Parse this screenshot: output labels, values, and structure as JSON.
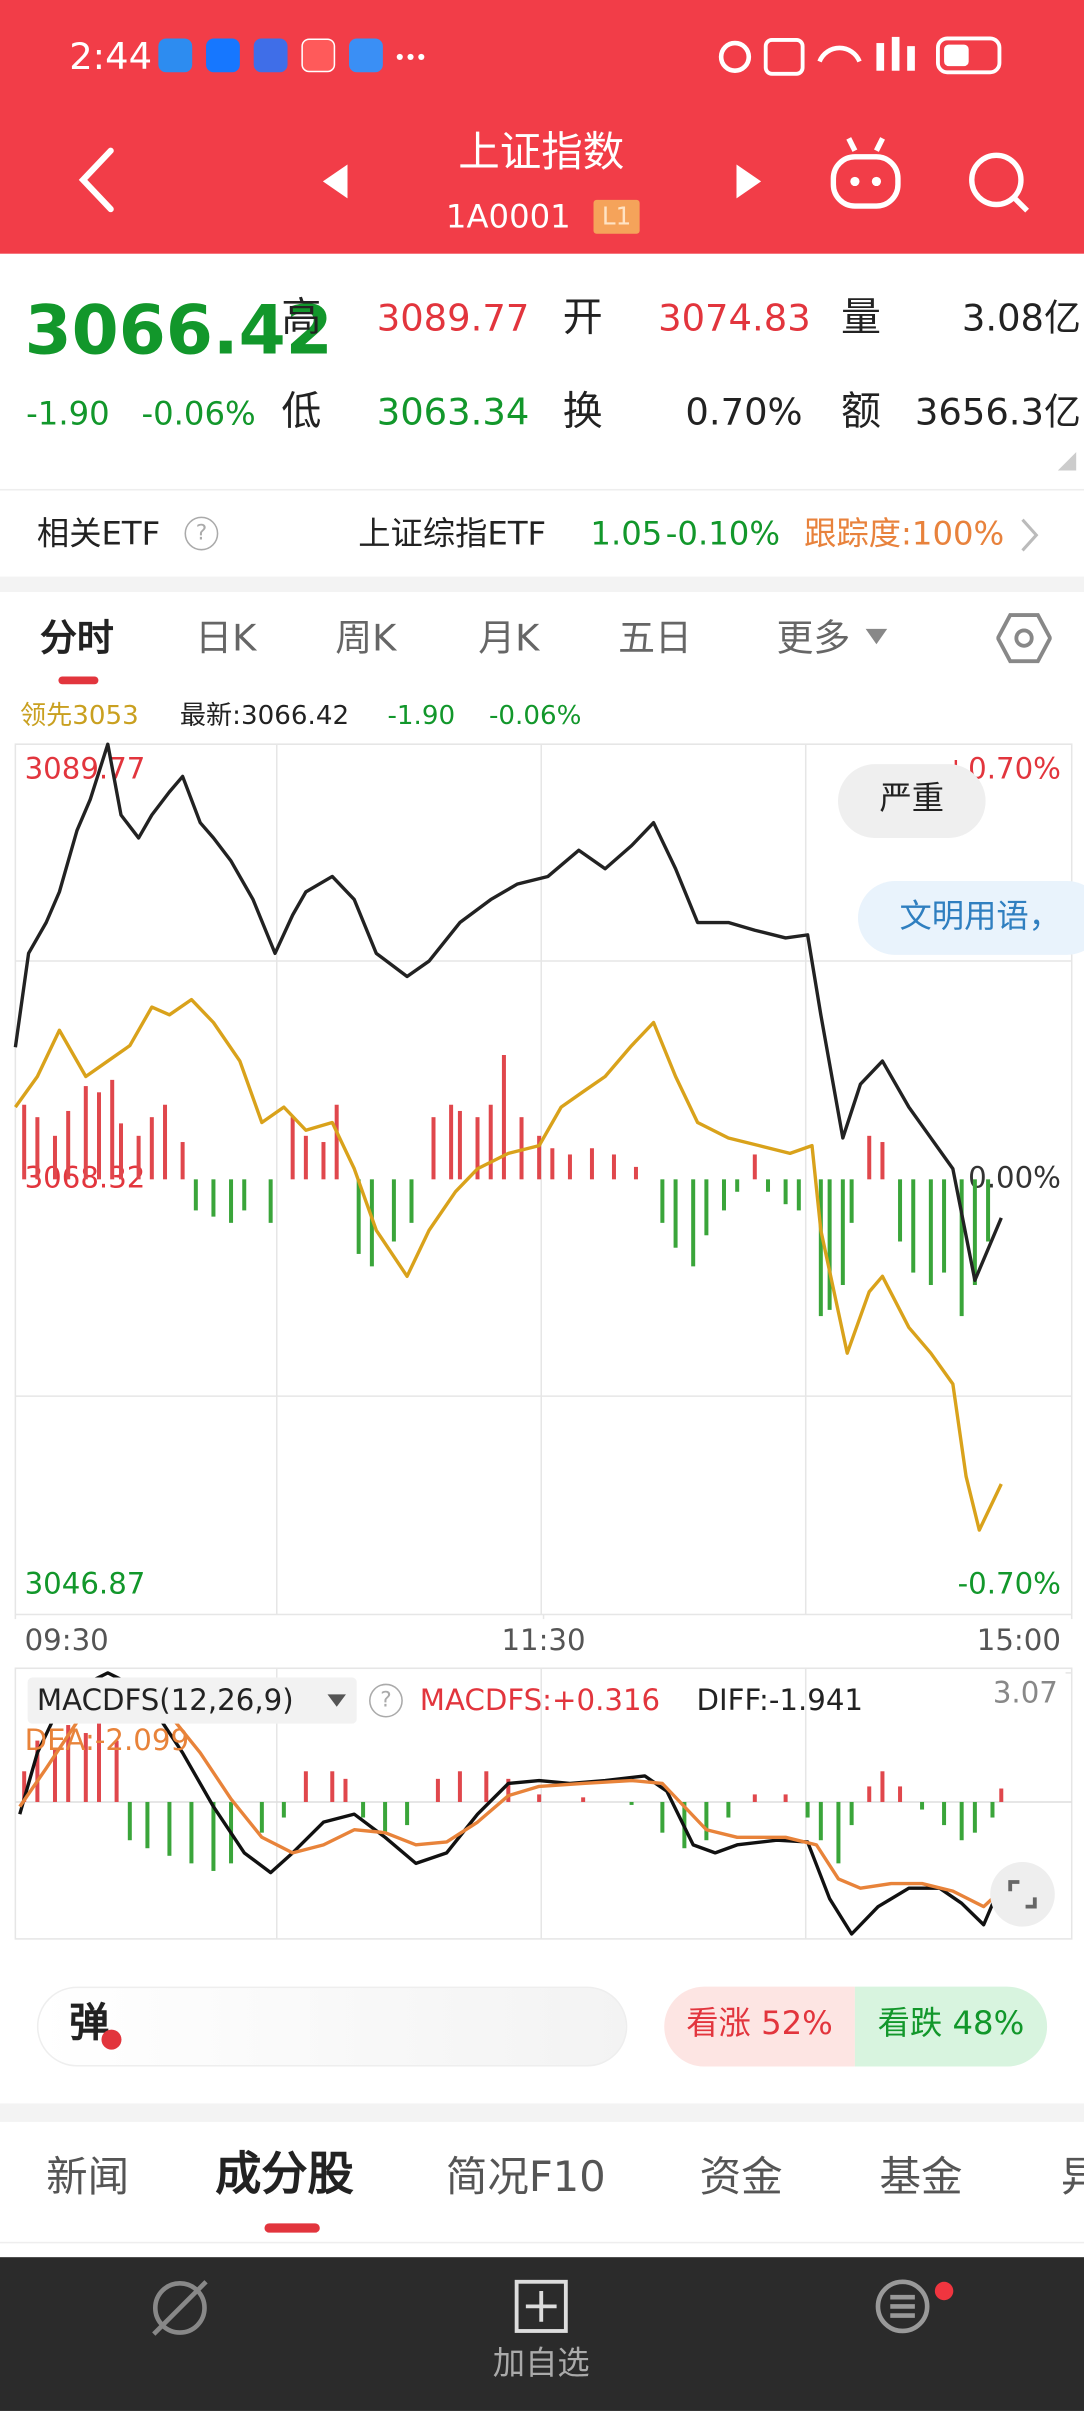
{
  "status_bar": {
    "time": "2:44"
  },
  "header": {
    "title": "上证指数",
    "code": "1A0001",
    "level": "L1"
  },
  "quote": {
    "price": "3066.42",
    "change": "-1.90",
    "change_pct": "-0.06%",
    "fields": [
      {
        "label": "高",
        "value": "3089.77"
      },
      {
        "label": "开",
        "value": "3074.83"
      },
      {
        "label": "量",
        "value": "3.08亿"
      },
      {
        "label": "低",
        "value": "3063.34"
      },
      {
        "label": "换",
        "value": "0.70%"
      },
      {
        "label": "额",
        "value": "3656.3亿"
      }
    ]
  },
  "etf": {
    "label": "相关ETF",
    "name": "上证综指ETF",
    "price": "1.05",
    "change_pct": "-0.10%",
    "tracking": "跟踪度:100%"
  },
  "chart_tabs": [
    "分时",
    "日K",
    "周K",
    "月K",
    "五日",
    "更多"
  ],
  "chart_info": {
    "leading": "领先3053",
    "latest": "最新:3066.42",
    "change": "-1.90",
    "change_pct": "-0.06%"
  },
  "chart_data": [
    {
      "type": "line",
      "xlim": [
        0,
        240
      ],
      "xticks": [
        {
          "value": 0,
          "label": "09:30"
        },
        {
          "value": 120,
          "label": "11:30"
        },
        {
          "value": 240,
          "label": "15:00"
        }
      ],
      "ylim": [
        3046.87,
        3089.77
      ],
      "yticks": [
        3046.87,
        3068.32,
        3089.77
      ],
      "y2lim": [
        -0.7,
        0.7
      ],
      "y2ticks": [
        {
          "value": -0.7,
          "label": "-0.70%"
        },
        {
          "value": 0,
          "label": "0.00%"
        },
        {
          "value": 0.7,
          "label": "+0.70%"
        }
      ],
      "grid": true,
      "series": [
        {
          "type": "bar",
          "axis": "y2",
          "up_color": "#e0474c",
          "down_color": "#3aa53a",
          "x": [
            2,
            5,
            9,
            12,
            16,
            19,
            22,
            24,
            28,
            31,
            34,
            38,
            41,
            45,
            49,
            52,
            58,
            63,
            66,
            70,
            73,
            78,
            81,
            86,
            90,
            95,
            99,
            101,
            105,
            108,
            111,
            115,
            119,
            122,
            126,
            131,
            136,
            141,
            147,
            150,
            154,
            157,
            161,
            164,
            168,
            171,
            175,
            178,
            183,
            185,
            188,
            190,
            194,
            197,
            201,
            204,
            208,
            211,
            215,
            218,
            221
          ],
          "values": [
            0.12,
            0.1,
            0.07,
            0.11,
            0.15,
            0.14,
            0.16,
            0.09,
            0.07,
            0.1,
            0.12,
            0.06,
            -0.05,
            -0.06,
            -0.07,
            -0.05,
            -0.07,
            0.1,
            0.07,
            0.06,
            0.12,
            -0.12,
            -0.14,
            -0.1,
            -0.07,
            0.1,
            0.12,
            0.11,
            0.1,
            0.12,
            0.2,
            0.1,
            0.07,
            0.05,
            0.04,
            0.05,
            0.04,
            0.02,
            -0.07,
            -0.11,
            -0.14,
            -0.09,
            -0.05,
            -0.02,
            0.04,
            -0.02,
            -0.04,
            -0.05,
            -0.22,
            -0.21,
            -0.17,
            -0.07,
            0.07,
            0.06,
            -0.1,
            -0.15,
            -0.17,
            -0.15,
            -0.22,
            -0.17,
            -0.1
          ]
        },
        {
          "type": "line",
          "color": "#d9a21b",
          "x": [
            0,
            5,
            10,
            16,
            21,
            26,
            31,
            35,
            40,
            45,
            51,
            56,
            61,
            66,
            72,
            77,
            82,
            89,
            94,
            100,
            105,
            112,
            119,
            124,
            129,
            134,
            140,
            145,
            150,
            155,
            162,
            169,
            176,
            181,
            183,
            189,
            194,
            197,
            203,
            208,
            213,
            216,
            219,
            224
          ],
          "values": [
            3071.88,
            3073.39,
            3075.67,
            3073.39,
            3074.15,
            3074.91,
            3076.81,
            3076.43,
            3077.18,
            3076.05,
            3074.15,
            3071.12,
            3071.88,
            3070.74,
            3071.12,
            3068.84,
            3065.81,
            3063.54,
            3065.81,
            3067.71,
            3068.84,
            3069.6,
            3069.98,
            3071.88,
            3072.64,
            3073.39,
            3074.91,
            3076.05,
            3073.39,
            3071.12,
            3070.36,
            3069.98,
            3069.6,
            3069.98,
            3065.81,
            3059.75,
            3062.78,
            3063.54,
            3061.02,
            3059.75,
            3058.23,
            3053.68,
            3051.03,
            3053.3
          ]
        },
        {
          "type": "line",
          "color": "#222222",
          "x": [
            0,
            3,
            7,
            10,
            14,
            17,
            21,
            24,
            28,
            31,
            35,
            38,
            42,
            45,
            49,
            54,
            59,
            63,
            66,
            72,
            77,
            82,
            89,
            94,
            101,
            108,
            114,
            121,
            128,
            134,
            140,
            145,
            150,
            155,
            162,
            168,
            175,
            180,
            183,
            188,
            192,
            197,
            203,
            208,
            213,
            218,
            224
          ],
          "values": [
            3074.83,
            3079.46,
            3080.98,
            3082.49,
            3085.52,
            3087.04,
            3089.77,
            3086.28,
            3085.15,
            3086.28,
            3087.42,
            3088.18,
            3085.9,
            3085.15,
            3084.01,
            3082.11,
            3079.46,
            3081.35,
            3082.49,
            3083.25,
            3082.11,
            3079.46,
            3078.32,
            3079.08,
            3080.98,
            3082.11,
            3082.87,
            3083.25,
            3084.54,
            3083.63,
            3084.77,
            3085.9,
            3083.63,
            3080.98,
            3080.98,
            3080.6,
            3080.22,
            3080.37,
            3076.43,
            3070.36,
            3073.01,
            3074.15,
            3071.88,
            3070.36,
            3068.84,
            3063.34,
            3066.42
          ]
        }
      ]
    },
    {
      "type": "line",
      "title": "MACDFS(12,26,9)",
      "xlim": [
        0,
        240
      ],
      "ylim": [
        -3.22,
        3.07
      ],
      "yticks": [
        3.07
      ],
      "series": [
        {
          "type": "bar",
          "name": "MACDFS:+0.316",
          "up_color": "#e0474c",
          "down_color": "#3aa53a",
          "x": [
            2,
            5,
            9,
            12,
            16,
            19,
            23,
            26,
            30,
            35,
            40,
            45,
            49,
            56,
            61,
            66,
            72,
            75,
            79,
            84,
            89,
            96,
            101,
            107,
            112,
            119,
            129,
            140,
            147,
            152,
            157,
            162,
            168,
            175,
            180,
            183,
            187,
            190,
            194,
            197,
            201,
            206,
            211,
            215,
            218,
            222,
            224
          ],
          "values": [
            0.73,
            1.46,
            1.28,
            1.83,
            1.64,
            2.01,
            1.46,
            -0.91,
            -1.1,
            -1.28,
            -1.46,
            -1.64,
            -1.46,
            -0.73,
            -0.37,
            0.73,
            0.73,
            0.55,
            -0.37,
            -0.73,
            -0.55,
            0.55,
            0.73,
            0.73,
            0.55,
            0.18,
            0.11,
            -0.07,
            -0.73,
            -1.1,
            -0.91,
            -0.37,
            0.18,
            0.18,
            -0.37,
            -0.91,
            -1.46,
            -0.55,
            0.37,
            0.73,
            0.37,
            -0.18,
            -0.55,
            -0.91,
            -0.73,
            -0.37,
            0.32
          ]
        },
        {
          "type": "line",
          "name": "DIFF:-1.941",
          "color": "#111111",
          "x": [
            1,
            5,
            10,
            16,
            21,
            26,
            31,
            38,
            45,
            52,
            58,
            63,
            70,
            77,
            84,
            91,
            98,
            105,
            112,
            119,
            126,
            134,
            143,
            148,
            154,
            159,
            164,
            173,
            180,
            185,
            190,
            196,
            203,
            210,
            215,
            220,
            224
          ],
          "values": [
            -0.29,
            1.17,
            2.27,
            2.81,
            3.07,
            2.81,
            2.27,
            1.17,
            -0.11,
            -1.21,
            -1.68,
            -1.21,
            -0.48,
            -0.29,
            -0.84,
            -1.46,
            -1.21,
            -0.29,
            0.44,
            0.51,
            0.44,
            0.51,
            0.62,
            0.26,
            -1.02,
            -1.21,
            -1.02,
            -0.91,
            -0.95,
            -2.3,
            -3.14,
            -2.49,
            -2.05,
            -2.05,
            -2.41,
            -2.92,
            -1.94
          ]
        },
        {
          "type": "line",
          "name": "DEA:-2.099",
          "color": "#e8833a",
          "x": [
            1,
            7,
            14,
            21,
            28,
            35,
            42,
            49,
            56,
            63,
            70,
            77,
            84,
            91,
            98,
            105,
            112,
            119,
            129,
            140,
            147,
            152,
            157,
            164,
            175,
            182,
            187,
            192,
            199,
            206,
            213,
            220,
            224
          ],
          "values": [
            -0.11,
            0.8,
            1.9,
            2.63,
            2.63,
            2.08,
            1.17,
            0.07,
            -0.84,
            -1.21,
            -1.02,
            -0.66,
            -0.73,
            -1.02,
            -0.95,
            -0.48,
            0.15,
            0.37,
            0.44,
            0.51,
            0.44,
            -0.11,
            -0.66,
            -0.84,
            -0.84,
            -1.02,
            -1.83,
            -2.05,
            -1.94,
            -1.94,
            -2.12,
            -2.49,
            -2.1
          ]
        }
      ]
    }
  ],
  "comments": [
    "严重",
    "文明用语，"
  ],
  "sentiment": {
    "bullet": "弹",
    "up": "看涨 52%",
    "down": "看跌 48%"
  },
  "bottom_tabs": [
    "新闻",
    "成分股",
    "简况F10",
    "资金",
    "基金",
    "异"
  ],
  "nav": {
    "add": "加自选"
  }
}
